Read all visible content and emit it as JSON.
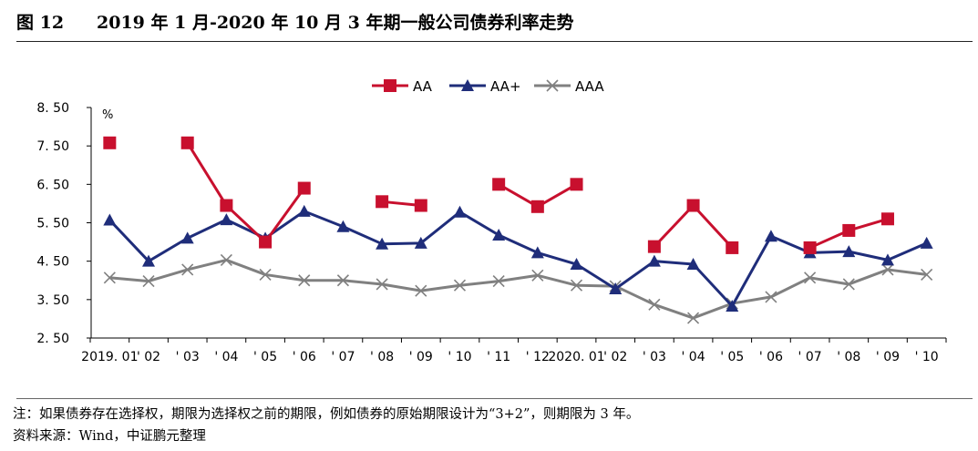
{
  "figure": {
    "number": "图 12",
    "title": "2019 年 1 月-2020 年 10 月 3 年期一般公司债券利率走势"
  },
  "footnote": {
    "note": "注：如果债券存在选择权，期限为选择权之前的期限，例如债券的原始期限设计为“3+2”，则期限为 3 年。",
    "source": "资料来源：Wind，中证鹏元整理"
  },
  "colors": {
    "AA": "#c8102e",
    "AA+": "#1f2d7a",
    "AAA": "#808080"
  },
  "chart_data": {
    "type": "line",
    "title": "",
    "xlabel": "",
    "ylabel": "%",
    "ylim": [
      2.5,
      8.5
    ],
    "yticks": [
      "8. 50",
      "7. 50",
      "6. 50",
      "5. 50",
      "4. 50",
      "3. 50",
      "2. 50"
    ],
    "ytick_values": [
      8.5,
      7.5,
      6.5,
      5.5,
      4.5,
      3.5,
      2.5
    ],
    "categories": [
      "2019. 01",
      "'02",
      "'03",
      "'04",
      "'05",
      "'06",
      "'07",
      "'08",
      "'09",
      "'10",
      "'11",
      "'12",
      "2020. 01",
      "'02",
      "'03",
      "'04",
      "'05",
      "'06",
      "'07",
      "'08",
      "'09",
      "'10"
    ],
    "xtick_labels": [
      "2019. 01",
      "' 02",
      "' 03",
      "' 04",
      "' 05",
      "' 06",
      "' 07",
      "' 08",
      "' 09",
      "' 10",
      "' 11",
      "' 12",
      "2020. 01",
      "' 02",
      "' 03",
      "' 04",
      "' 05",
      "' 06",
      "' 07",
      "' 08",
      "' 09",
      "' 10"
    ],
    "legend_position": "top-center",
    "series": [
      {
        "name": "AA",
        "marker": "square",
        "values": [
          7.58,
          null,
          7.58,
          5.95,
          5.0,
          6.4,
          null,
          6.05,
          5.95,
          null,
          6.5,
          5.92,
          6.5,
          null,
          4.88,
          5.95,
          4.85,
          null,
          4.85,
          5.3,
          5.6,
          null
        ]
      },
      {
        "name": "AA+",
        "marker": "triangle",
        "values": [
          5.57,
          4.5,
          5.1,
          5.58,
          5.1,
          5.8,
          5.4,
          4.95,
          4.97,
          5.78,
          5.18,
          4.72,
          4.42,
          3.78,
          4.5,
          4.42,
          3.33,
          5.15,
          4.72,
          4.75,
          4.53,
          4.97
        ]
      },
      {
        "name": "AAA",
        "marker": "x",
        "values": [
          4.07,
          3.98,
          4.28,
          4.53,
          4.15,
          4.0,
          4.0,
          3.9,
          3.73,
          3.87,
          3.98,
          4.13,
          3.87,
          3.85,
          3.37,
          3.02,
          3.4,
          3.57,
          4.07,
          3.9,
          4.28,
          4.15
        ]
      }
    ]
  }
}
